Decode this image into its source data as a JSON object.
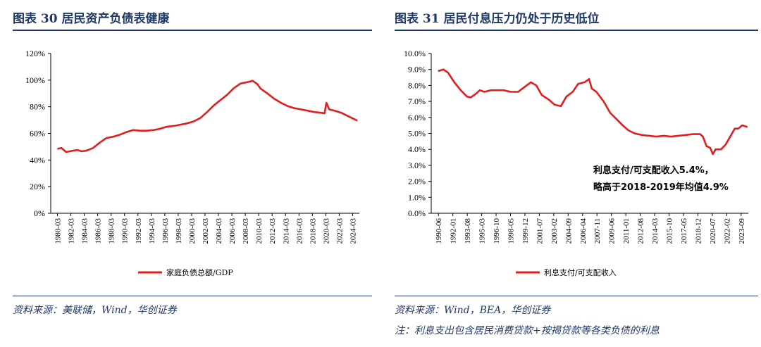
{
  "left": {
    "fig_title": "图表 30   居民资产负债表健康",
    "source": "资料来源：美联储，Wind，华创证券"
  },
  "right": {
    "fig_title": "图表 31   居民付息压力仍处于历史低位",
    "source": "资料来源：Wind，BEA，华创证券",
    "note": "注：利息支出包含居民消费贷款+按揭贷款等各类负债的利息"
  },
  "colors": {
    "series": "#e11d1d",
    "title": "#1f3864"
  },
  "chart_data": [
    {
      "type": "line",
      "title": "",
      "ylim": [
        0,
        120
      ],
      "y_ticks": [
        "0%",
        "20%",
        "40%",
        "60%",
        "80%",
        "100%",
        "120%"
      ],
      "x_ticks": [
        "1980-03",
        "1982-03",
        "1984-03",
        "1986-03",
        "1988-03",
        "1990-03",
        "1992-03",
        "1994-03",
        "1996-03",
        "1998-03",
        "2000-03",
        "2002-03",
        "2004-03",
        "2006-03",
        "2008-03",
        "2010-03",
        "2012-03",
        "2014-03",
        "2016-03",
        "2018-03",
        "2020-03",
        "2022-03",
        "2024-03"
      ],
      "legend_position": "bottom",
      "series": [
        {
          "name": "家庭负债总额/GDP",
          "points": [
            [
              1980.2,
              48.5
            ],
            [
              1980.8,
              49
            ],
            [
              1981.5,
              46
            ],
            [
              1982.5,
              47
            ],
            [
              1983.2,
              47.5
            ],
            [
              1983.8,
              46.5
            ],
            [
              1984.5,
              47
            ],
            [
              1985.5,
              49
            ],
            [
              1986.5,
              53
            ],
            [
              1987.5,
              56.5
            ],
            [
              1988.5,
              57.5
            ],
            [
              1989.5,
              59
            ],
            [
              1990.5,
              61
            ],
            [
              1991.5,
              62.5
            ],
            [
              1992.5,
              62
            ],
            [
              1993.5,
              62
            ],
            [
              1994.5,
              62.5
            ],
            [
              1995.5,
              63.5
            ],
            [
              1996.5,
              65
            ],
            [
              1997.5,
              65.5
            ],
            [
              1998.5,
              66.5
            ],
            [
              1999.5,
              67.5
            ],
            [
              2000.5,
              69
            ],
            [
              2001.5,
              71.5
            ],
            [
              2002.5,
              76
            ],
            [
              2003.5,
              81
            ],
            [
              2004.5,
              85
            ],
            [
              2005.5,
              89
            ],
            [
              2006.5,
              94
            ],
            [
              2007.5,
              97.5
            ],
            [
              2008.5,
              98.5
            ],
            [
              2009.3,
              99.5
            ],
            [
              2010,
              97
            ],
            [
              2010.5,
              93.5
            ],
            [
              2011.5,
              90
            ],
            [
              2012.5,
              86
            ],
            [
              2013.5,
              83
            ],
            [
              2014.5,
              80.5
            ],
            [
              2015.5,
              79
            ],
            [
              2016.5,
              78
            ],
            [
              2017.5,
              77
            ],
            [
              2018.5,
              76
            ],
            [
              2019.5,
              75.5
            ],
            [
              2020,
              75
            ],
            [
              2020.3,
              83
            ],
            [
              2020.7,
              78
            ],
            [
              2021.5,
              77
            ],
            [
              2022.5,
              75.5
            ],
            [
              2023.5,
              73
            ],
            [
              2024.5,
              70.5
            ],
            [
              2024.9,
              69.5
            ]
          ]
        }
      ]
    },
    {
      "type": "line",
      "title": "",
      "ylim": [
        0,
        10
      ],
      "y_ticks": [
        "0.0%",
        "1.0%",
        "2.0%",
        "3.0%",
        "4.0%",
        "5.0%",
        "6.0%",
        "7.0%",
        "8.0%",
        "9.0%",
        "10.0%"
      ],
      "x_ticks": [
        "1990-06",
        "1992-01",
        "1993-08",
        "1995-03",
        "1996-10",
        "1998-05",
        "1999-12",
        "2001-07",
        "2003-02",
        "2004-09",
        "2006-04",
        "2007-11",
        "2009-06",
        "2011-01",
        "2012-08",
        "2014-03",
        "2015-10",
        "2017-05",
        "2018-12",
        "2020-07",
        "2022-02",
        "2023-09"
      ],
      "legend_position": "bottom",
      "annotation": [
        "利息支付/可支配收入5.4%，",
        "略高于2018-2019年均值4.9%"
      ],
      "series": [
        {
          "name": "利息支付/可支配收入",
          "points": [
            [
              1990.4,
              8.9
            ],
            [
              1991.0,
              9.0
            ],
            [
              1991.5,
              8.8
            ],
            [
              1992.2,
              8.2
            ],
            [
              1992.9,
              7.7
            ],
            [
              1993.6,
              7.3
            ],
            [
              1994.0,
              7.25
            ],
            [
              1994.6,
              7.5
            ],
            [
              1995.0,
              7.7
            ],
            [
              1995.5,
              7.6
            ],
            [
              1996.2,
              7.7
            ],
            [
              1997.0,
              7.7
            ],
            [
              1997.6,
              7.7
            ],
            [
              1998.4,
              7.6
            ],
            [
              1999.2,
              7.6
            ],
            [
              1999.9,
              7.9
            ],
            [
              2000.6,
              8.2
            ],
            [
              2001.2,
              8.0
            ],
            [
              2001.8,
              7.4
            ],
            [
              2002.6,
              7.1
            ],
            [
              2003.2,
              6.8
            ],
            [
              2003.9,
              6.7
            ],
            [
              2004.5,
              7.3
            ],
            [
              2005.2,
              7.6
            ],
            [
              2005.8,
              8.1
            ],
            [
              2006.5,
              8.2
            ],
            [
              2007.0,
              8.4
            ],
            [
              2007.3,
              7.8
            ],
            [
              2007.8,
              7.6
            ],
            [
              2008.6,
              7.0
            ],
            [
              2009.3,
              6.3
            ],
            [
              2010.0,
              5.9
            ],
            [
              2010.7,
              5.5
            ],
            [
              2011.3,
              5.2
            ],
            [
              2012.0,
              5.0
            ],
            [
              2012.8,
              4.9
            ],
            [
              2013.6,
              4.85
            ],
            [
              2014.4,
              4.8
            ],
            [
              2015.2,
              4.85
            ],
            [
              2016.0,
              4.8
            ],
            [
              2016.8,
              4.85
            ],
            [
              2017.6,
              4.9
            ],
            [
              2018.4,
              4.95
            ],
            [
              2019.2,
              4.95
            ],
            [
              2019.5,
              4.8
            ],
            [
              2019.9,
              4.2
            ],
            [
              2020.3,
              4.1
            ],
            [
              2020.6,
              3.7
            ],
            [
              2020.9,
              4.0
            ],
            [
              2021.5,
              4.0
            ],
            [
              2022.0,
              4.3
            ],
            [
              2022.6,
              4.9
            ],
            [
              2023.0,
              5.3
            ],
            [
              2023.4,
              5.3
            ],
            [
              2023.8,
              5.5
            ],
            [
              2024.4,
              5.4
            ]
          ]
        }
      ]
    }
  ]
}
